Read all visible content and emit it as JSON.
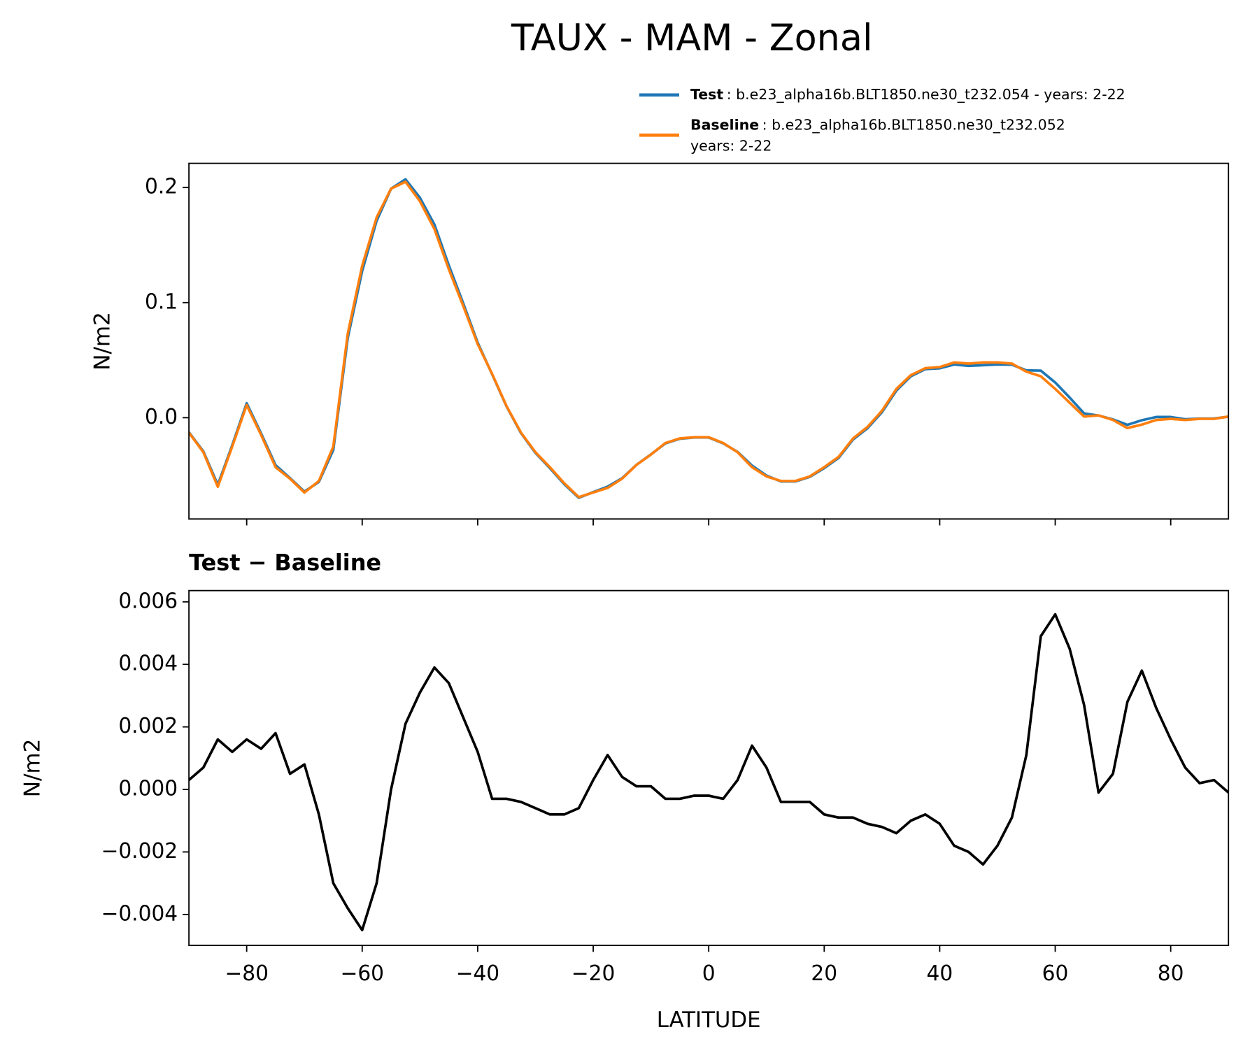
{
  "title": "TAUX - MAM - Zonal",
  "chart_data": [
    {
      "type": "line",
      "ylabel": "N/m2",
      "x": [
        -90,
        -87.5,
        -85,
        -82.5,
        -80,
        -77.5,
        -75,
        -72.5,
        -70,
        -67.5,
        -65,
        -62.5,
        -60,
        -57.5,
        -55,
        -52.5,
        -50,
        -47.5,
        -45,
        -42.5,
        -40,
        -37.5,
        -35,
        -32.5,
        -30,
        -27.5,
        -25,
        -22.5,
        -20,
        -17.5,
        -15,
        -12.5,
        -10,
        -7.5,
        -5,
        -2.5,
        0,
        2.5,
        5,
        7.5,
        10,
        12.5,
        15,
        17.5,
        20,
        22.5,
        25,
        27.5,
        30,
        32.5,
        35,
        37.5,
        40,
        42.5,
        45,
        47.5,
        50,
        52.5,
        55,
        57.5,
        60,
        62.5,
        65,
        67.5,
        70,
        72.5,
        75,
        77.5,
        80,
        82.5,
        85,
        87.5,
        90
      ],
      "series": [
        {
          "name": "Test",
          "description": ": b.e23_alpha16b.BLT1850.ne30_t232.054 - years: 2-22",
          "color": "#1f77b4",
          "values": [
            -0.0127,
            -0.0293,
            -0.0584,
            -0.0238,
            0.0126,
            -0.0137,
            -0.0412,
            -0.0525,
            -0.0642,
            -0.0558,
            -0.028,
            0.0692,
            0.1275,
            0.171,
            0.199,
            0.2071,
            0.1911,
            0.1679,
            0.1324,
            0.0993,
            0.0652,
            0.0377,
            0.0097,
            -0.0134,
            -0.0306,
            -0.0438,
            -0.0578,
            -0.0696,
            -0.0647,
            -0.0599,
            -0.0526,
            -0.0409,
            -0.0319,
            -0.0223,
            -0.0183,
            -0.0172,
            -0.0172,
            -0.0223,
            -0.0297,
            -0.0416,
            -0.0503,
            -0.0554,
            -0.0554,
            -0.0514,
            -0.0438,
            -0.0349,
            -0.0189,
            -0.0091,
            0.0048,
            0.0236,
            0.036,
            0.0422,
            0.0429,
            0.0462,
            0.045,
            0.0456,
            0.0462,
            0.0461,
            0.0411,
            0.0409,
            0.0306,
            0.0175,
            0.0037,
            0.0019,
            -0.0015,
            -0.0062,
            -0.0022,
            0.0006,
            0.0006,
            -0.0013,
            -0.0008,
            -0.0007,
            0.0009
          ]
        },
        {
          "name": "Baseline",
          "description": [
            ": b.e23_alpha16b.BLT1850.ne30_t232.052",
            "years: 2-22"
          ],
          "color": "#ff7f0e",
          "values": [
            -0.013,
            -0.03,
            -0.06,
            -0.025,
            0.011,
            -0.015,
            -0.043,
            -0.053,
            -0.065,
            -0.055,
            -0.025,
            0.073,
            0.132,
            0.174,
            0.199,
            0.205,
            0.188,
            0.164,
            0.129,
            0.097,
            0.064,
            0.038,
            0.01,
            -0.013,
            -0.03,
            -0.043,
            -0.057,
            -0.069,
            -0.065,
            -0.061,
            -0.053,
            -0.041,
            -0.032,
            -0.022,
            -0.018,
            -0.017,
            -0.017,
            -0.022,
            -0.03,
            -0.043,
            -0.051,
            -0.055,
            -0.055,
            -0.051,
            -0.043,
            -0.034,
            -0.018,
            -0.008,
            0.006,
            0.025,
            0.037,
            0.043,
            0.044,
            0.048,
            0.047,
            0.048,
            0.048,
            0.047,
            0.04,
            0.036,
            0.025,
            0.013,
            0.001,
            0.002,
            -0.002,
            -0.009,
            -0.006,
            -0.002,
            -0.001,
            -0.002,
            -0.001,
            -0.001,
            0.001
          ]
        }
      ],
      "xlim": [
        -90,
        90
      ],
      "xticks": [
        -80,
        -60,
        -40,
        -20,
        0,
        20,
        40,
        60,
        80
      ],
      "ylim": [
        -0.088,
        0.221
      ],
      "yticks": [
        {
          "value": 0,
          "label": "0.0"
        },
        0.1,
        0.2
      ],
      "grid": false
    },
    {
      "type": "line",
      "title": "Test − Baseline",
      "xlabel": "LATITUDE",
      "ylabel": "N/m2",
      "color": "#000000",
      "x": [
        -90,
        -87.5,
        -85,
        -82.5,
        -80,
        -77.5,
        -75,
        -72.5,
        -70,
        -67.5,
        -65,
        -62.5,
        -60,
        -57.5,
        -55,
        -52.5,
        -50,
        -47.5,
        -45,
        -42.5,
        -40,
        -37.5,
        -35,
        -32.5,
        -30,
        -27.5,
        -25,
        -22.5,
        -20,
        -17.5,
        -15,
        -12.5,
        -10,
        -7.5,
        -5,
        -2.5,
        0,
        2.5,
        5,
        7.5,
        10,
        12.5,
        15,
        17.5,
        20,
        22.5,
        25,
        27.5,
        30,
        32.5,
        35,
        37.5,
        40,
        42.5,
        45,
        47.5,
        50,
        52.5,
        55,
        57.5,
        60,
        62.5,
        65,
        67.5,
        70,
        72.5,
        75,
        77.5,
        80,
        82.5,
        85,
        87.5,
        90
      ],
      "values": [
        0.0003,
        0.0007,
        0.0016,
        0.0012,
        0.0016,
        0.0013,
        0.0018,
        0.0005,
        0.0008,
        -0.0008,
        -0.003,
        -0.0038,
        -0.0045,
        -0.003,
        0.0,
        0.0021,
        0.0031,
        0.0039,
        0.0034,
        0.0023,
        0.0012,
        -0.0003,
        -0.0003,
        -0.0004,
        -0.0006,
        -0.0008,
        -0.0008,
        -0.0006,
        0.0003,
        0.0011,
        0.0004,
        0.0001,
        0.0001,
        -0.0003,
        -0.0003,
        -0.0002,
        -0.0002,
        -0.0003,
        0.0003,
        0.0014,
        0.0007,
        -0.0004,
        -0.0004,
        -0.0004,
        -0.0008,
        -0.0009,
        -0.0009,
        -0.0011,
        -0.0012,
        -0.0014,
        -0.001,
        -0.0008,
        -0.0011,
        -0.0018,
        -0.002,
        -0.0024,
        -0.0018,
        -0.0009,
        0.0011,
        0.0049,
        0.0056,
        0.0045,
        0.0027,
        -0.0001,
        0.0005,
        0.0028,
        0.0038,
        0.0026,
        0.0016,
        0.0007,
        0.0002,
        0.0003,
        -0.0001
      ],
      "xlim": [
        -90,
        90
      ],
      "xticks": [
        {
          "value": -80,
          "label": "−80"
        },
        {
          "value": -60,
          "label": "−60"
        },
        {
          "value": -40,
          "label": "−40"
        },
        {
          "value": -20,
          "label": "−20"
        },
        0,
        20,
        40,
        60,
        80
      ],
      "ylim": [
        -0.00499,
        0.00636
      ],
      "yticks": [
        {
          "value": -0.004,
          "label": "−0.004"
        },
        {
          "value": -0.002,
          "label": "−0.002"
        },
        {
          "value": 0,
          "label": "0.000"
        },
        {
          "value": 0.002,
          "label": "0.002"
        },
        {
          "value": 0.004,
          "label": "0.004"
        },
        {
          "value": 0.006,
          "label": "0.006"
        }
      ],
      "grid": false
    }
  ]
}
